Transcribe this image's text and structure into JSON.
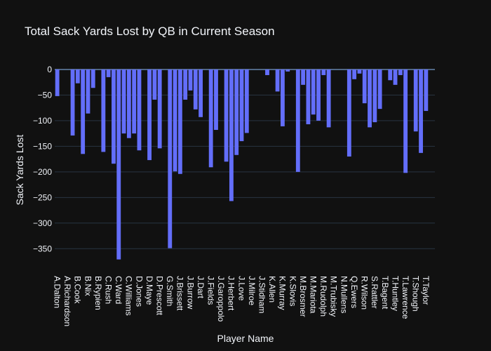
{
  "chart_data": {
    "type": "bar",
    "title": "Total Sack Yards Lost by QB in Current Season",
    "x_label": "Player Name",
    "y_label": "Sack Yards Lost",
    "color": "#636efa",
    "grid": true,
    "categories": [
      "A.Dalton",
      null,
      "A.Richardson",
      null,
      "B.Cook",
      null,
      "B.Nix",
      null,
      "B.Rypien",
      null,
      "C.Rush",
      null,
      "C.Ward",
      null,
      "C.Williams",
      null,
      "D.Jones",
      null,
      "D.Maye",
      null,
      "D.Prescott",
      null,
      "G.Smith",
      null,
      "J.Brissett",
      null,
      "J.Burrow",
      null,
      "J.Dart",
      null,
      "J.Fields",
      null,
      "J.Garoppolo",
      null,
      "J.Herbert",
      null,
      "J.Love",
      null,
      "J.Milroe",
      null,
      "J.Stidham",
      null,
      "K.Allen",
      null,
      "K.Murray",
      null,
      "K.Slovis",
      null,
      "M.Brosmer",
      null,
      "M.Mariota",
      null,
      "M.Rudolph",
      null,
      "M.Trubisky",
      null,
      "N.Mullens",
      null,
      "Q.Ewers",
      null,
      "R.Wilson",
      null,
      "S.Rattler",
      null,
      "T.Bagent",
      null,
      "T.Huntley",
      null,
      "T.Lawrence",
      null,
      "T.Shough",
      null,
      "T.Taylor"
    ],
    "values": [
      -52,
      0,
      0,
      -129,
      -27,
      -165,
      -86,
      -36,
      0,
      -161,
      -15,
      -184,
      -371,
      -125,
      -134,
      -125,
      -158,
      0,
      -177,
      -59,
      -154,
      0,
      -349,
      -199,
      -204,
      -59,
      -41,
      -78,
      -93,
      0,
      -191,
      -118,
      0,
      -180,
      -257,
      -167,
      -140,
      -124,
      0,
      0,
      0,
      -11,
      0,
      -43,
      -111,
      -4,
      0,
      -200,
      -30,
      -107,
      -88,
      -100,
      -11,
      -113,
      0,
      0,
      0,
      -170,
      -19,
      -8,
      -66,
      -113,
      -103,
      -77,
      0,
      -21,
      -30,
      -11,
      -202,
      0,
      -121,
      -163,
      -81
    ],
    "ylim": [
      -399,
      26
    ],
    "yticks": [
      0,
      {
        "value": -50,
        "label": "−50"
      },
      {
        "value": -100,
        "label": "−100"
      },
      {
        "value": -150,
        "label": "−150"
      },
      {
        "value": -200,
        "label": "−200"
      },
      {
        "value": -250,
        "label": "−250"
      },
      {
        "value": -300,
        "label": "−300"
      },
      {
        "value": -350,
        "label": "−350"
      }
    ]
  }
}
